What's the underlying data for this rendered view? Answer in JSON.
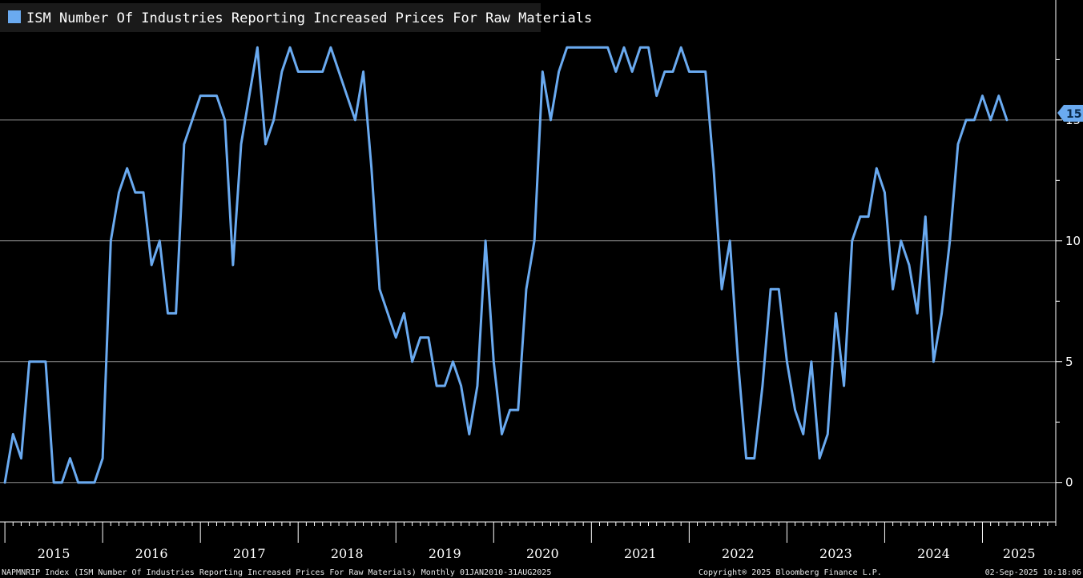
{
  "chart_data": {
    "type": "line",
    "title": "",
    "legend": {
      "label": "ISM Number Of Industries Reporting Increased Prices For Raw Materials",
      "position": "top-left"
    },
    "xlabel": "",
    "ylabel": "",
    "ylim": [
      -1.5,
      19.5
    ],
    "yticks": [
      0,
      5,
      10,
      15
    ],
    "ytick_labels": [
      "0",
      "5",
      "10",
      "15"
    ],
    "grid": true,
    "x_start": 2015.0,
    "x_range": [
      2014.95,
      2025.75
    ],
    "year_labels": [
      "2015",
      "2016",
      "2017",
      "2018",
      "2019",
      "2020",
      "2021",
      "2022",
      "2023",
      "2024",
      "2025"
    ],
    "frequency": "monthly",
    "last_value": "15",
    "series": [
      {
        "name": "NAPMNRIP Index",
        "color": "#6aaaf0",
        "values": [
          0,
          2,
          1,
          5,
          5,
          5,
          0,
          0,
          1,
          0,
          0,
          0,
          1,
          10,
          12,
          13,
          12,
          12,
          9,
          10,
          7,
          7,
          14,
          15,
          16,
          16,
          16,
          15,
          9,
          14,
          16,
          18,
          14,
          15,
          17,
          18,
          17,
          17,
          17,
          17,
          18,
          17,
          16,
          15,
          17,
          13,
          8,
          7,
          6,
          7,
          5,
          6,
          6,
          4,
          4,
          5,
          4,
          2,
          4,
          10,
          5,
          2,
          3,
          3,
          8,
          10,
          17,
          15,
          17,
          18,
          18,
          18,
          18,
          18,
          18,
          17,
          18,
          17,
          18,
          18,
          16,
          17,
          17,
          18,
          17,
          17,
          17,
          13,
          8,
          10,
          5,
          1,
          1,
          4,
          8,
          8,
          5,
          3,
          2,
          5,
          1,
          2,
          7,
          4,
          10,
          11,
          11,
          13,
          12,
          8,
          10,
          9,
          7,
          11,
          5,
          7,
          10,
          14,
          15,
          15,
          16,
          15,
          16,
          15
        ]
      }
    ]
  },
  "footer": {
    "left": "NAPMNRIP Index (ISM Number Of Industries Reporting Increased Prices For Raw Materials)  Monthly 01JAN2010-31AUG2025",
    "center": "Copyright® 2025 Bloomberg Finance L.P.",
    "right": "02-Sep-2025 10:18:06"
  },
  "colors": {
    "background": "#000000",
    "line": "#6aaaf0",
    "grid": "#8c8c8c",
    "text": "#ffffff"
  }
}
